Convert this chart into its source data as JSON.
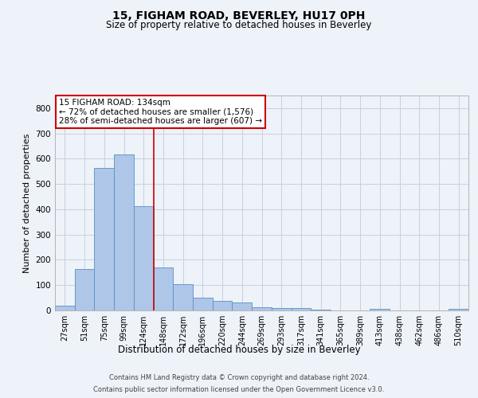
{
  "title": "15, FIGHAM ROAD, BEVERLEY, HU17 0PH",
  "subtitle": "Size of property relative to detached houses in Beverley",
  "xlabel": "Distribution of detached houses by size in Beverley",
  "ylabel": "Number of detached properties",
  "footer_line1": "Contains HM Land Registry data © Crown copyright and database right 2024.",
  "footer_line2": "Contains public sector information licensed under the Open Government Licence v3.0.",
  "bar_labels": [
    "27sqm",
    "51sqm",
    "75sqm",
    "99sqm",
    "124sqm",
    "148sqm",
    "172sqm",
    "196sqm",
    "220sqm",
    "244sqm",
    "269sqm",
    "293sqm",
    "317sqm",
    "341sqm",
    "365sqm",
    "389sqm",
    "413sqm",
    "438sqm",
    "462sqm",
    "486sqm",
    "510sqm"
  ],
  "bar_values": [
    18,
    163,
    563,
    618,
    413,
    170,
    103,
    50,
    38,
    30,
    13,
    11,
    10,
    3,
    0,
    0,
    7,
    0,
    0,
    0,
    6
  ],
  "bar_color": "#aec6e8",
  "bar_edge_color": "#5a8fc2",
  "grid_color": "#c8d0e0",
  "annotation_text": "15 FIGHAM ROAD: 134sqm\n← 72% of detached houses are smaller (1,576)\n28% of semi-detached houses are larger (607) →",
  "annotation_box_color": "#ffffff",
  "annotation_box_edge": "#cc0000",
  "vline_x": 4.5,
  "vline_color": "#cc0000",
  "ylim": [
    0,
    850
  ],
  "yticks": [
    0,
    100,
    200,
    300,
    400,
    500,
    600,
    700,
    800
  ],
  "background_color": "#eef2f9",
  "plot_background": "#eef2f9"
}
